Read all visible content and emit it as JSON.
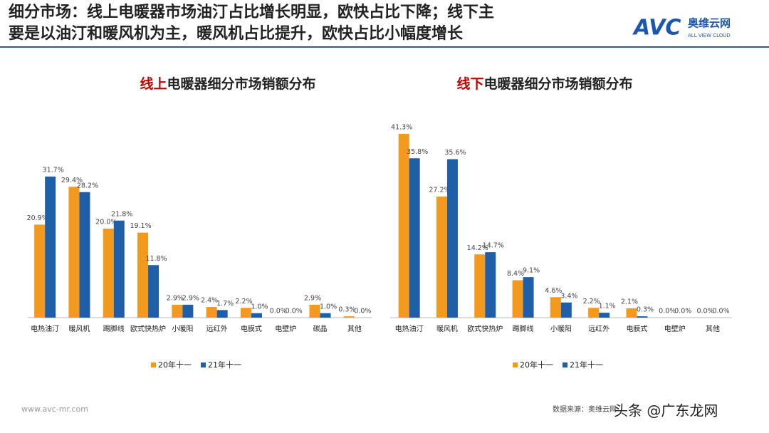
{
  "header": {
    "title_line1": "细分市场：线上电暖器市场油汀占比增长明显，欧快占比下降；线下主",
    "title_line2": "要是以油汀和暖风机为主，暖风机占比提升，欧快占比小幅度增长",
    "logo": "AVC",
    "brand": "奥维云网",
    "brand_en": "ALL VIEW CLOUD"
  },
  "footer": {
    "website": "www.avc-mr.com",
    "source": "数据来源：奥维云网",
    "watermark": "头条 @广东龙网"
  },
  "chart_data": [
    {
      "type": "bar",
      "title": {
        "highlight": "线上",
        "rest": "电暖器细分市场销额分布"
      },
      "categories": [
        "电热油汀",
        "暖风机",
        "踢脚线",
        "欧式快热炉",
        "小暖阳",
        "远红外",
        "电膜式",
        "电壁炉",
        "碳晶",
        "其他"
      ],
      "series": [
        {
          "name": "20年十一",
          "color": "#f39a1e",
          "values": [
            20.9,
            29.4,
            20.0,
            19.1,
            2.9,
            2.4,
            2.2,
            0.0,
            2.9,
            0.3
          ],
          "value_labels": [
            "20.9%",
            "29.4%",
            "20.0%",
            "19.1%",
            "2.9%",
            "2.4%",
            "2.2%",
            "0.0%",
            "2.9%",
            "0.3%"
          ]
        },
        {
          "name": "21年十一",
          "color": "#1f5fa8",
          "values": [
            31.7,
            28.2,
            21.8,
            11.8,
            2.9,
            1.7,
            1.0,
            0.0,
            1.0,
            0.0
          ],
          "value_labels": [
            "31.7%",
            "28.2%",
            "21.8%",
            "11.8%",
            "2.9%",
            "1.7%",
            "1.0%",
            "0.0%",
            "1.0%",
            "0.0%"
          ]
        }
      ]
    },
    {
      "type": "bar",
      "title": {
        "highlight": "线下",
        "rest": "电暖器细分市场销额分布"
      },
      "categories": [
        "电热油汀",
        "暖风机",
        "欧式快热炉",
        "踢脚线",
        "小暖阳",
        "远红外",
        "电膜式",
        "电壁炉",
        "其他"
      ],
      "series": [
        {
          "name": "20年十一",
          "color": "#f39a1e",
          "values": [
            41.3,
            27.2,
            14.2,
            8.4,
            4.6,
            2.2,
            2.1,
            0.0,
            0.0
          ],
          "value_labels": [
            "41.3%",
            "27.2%",
            "14.2%",
            "8.4%",
            "4.6%",
            "2.2%",
            "2.1%",
            "0.0%",
            "0.0%"
          ]
        },
        {
          "name": "21年十一",
          "color": "#1f5fa8",
          "values": [
            35.8,
            35.6,
            14.7,
            9.1,
            3.4,
            1.1,
            0.3,
            0.0,
            0.0
          ],
          "value_labels": [
            "35.8%",
            "35.6%",
            "14.7%",
            "9.1%",
            "3.4%",
            "1.1%",
            "0.3%",
            "0.0%",
            "0.0%"
          ]
        }
      ]
    }
  ]
}
